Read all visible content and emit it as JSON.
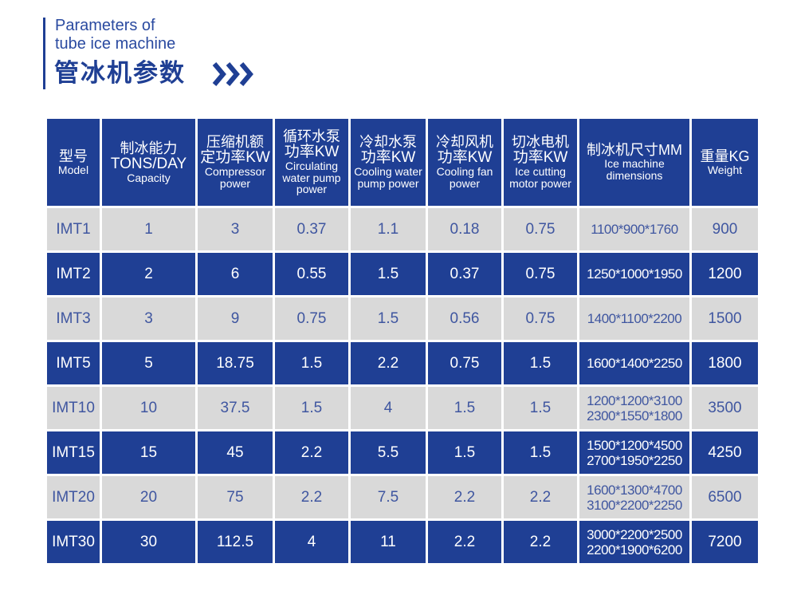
{
  "title": {
    "en_line1": "Parameters of",
    "en_line2": "tube ice machine",
    "zh": "管冰机参数",
    "accent_color": "#1f3f94",
    "icon": "triple-chevron-right-icon"
  },
  "table": {
    "headers": [
      {
        "zh": "型号",
        "en": "Model"
      },
      {
        "zh": "制冰能力",
        "zh2": "TONS/DAY",
        "en": "Capacity"
      },
      {
        "zh": "压缩机额",
        "zh2": "定功率KW",
        "en": "Compressor power"
      },
      {
        "zh": "循环水泵",
        "zh2": "功率KW",
        "en": "Circulating water pump power"
      },
      {
        "zh": "冷却水泵",
        "zh2": "功率KW",
        "en": "Cooling water pump power"
      },
      {
        "zh": "冷却风机",
        "zh2": "功率KW",
        "en": "Cooling fan power"
      },
      {
        "zh": "切冰电机",
        "zh2": "功率KW",
        "en": "Ice cutting motor power"
      },
      {
        "zh": "制冰机尺寸MM",
        "en": "Ice machine dimensions"
      },
      {
        "zh": "重量KG",
        "en": "Weight"
      }
    ],
    "rows": [
      [
        "IMT1",
        "1",
        "3",
        "0.37",
        "1.1",
        "0.18",
        "0.75",
        [
          "1100*900*1760"
        ],
        "900"
      ],
      [
        "IMT2",
        "2",
        "6",
        "0.55",
        "1.5",
        "0.37",
        "0.75",
        [
          "1250*1000*1950"
        ],
        "1200"
      ],
      [
        "IMT3",
        "3",
        "9",
        "0.75",
        "1.5",
        "0.56",
        "0.75",
        [
          "1400*1100*2200"
        ],
        "1500"
      ],
      [
        "IMT5",
        "5",
        "18.75",
        "1.5",
        "2.2",
        "0.75",
        "1.5",
        [
          "1600*1400*2250"
        ],
        "1800"
      ],
      [
        "IMT10",
        "10",
        "37.5",
        "1.5",
        "4",
        "1.5",
        "1.5",
        [
          "1200*1200*3100",
          "2300*1550*1800"
        ],
        "3500"
      ],
      [
        "IMT15",
        "15",
        "45",
        "2.2",
        "5.5",
        "1.5",
        "1.5",
        [
          "1500*1200*4500",
          "2700*1950*2250"
        ],
        "4250"
      ],
      [
        "IMT20",
        "20",
        "75",
        "2.2",
        "7.5",
        "2.2",
        "2.2",
        [
          "1600*1300*4700",
          "3100*2200*2250"
        ],
        "6500"
      ],
      [
        "IMT30",
        "30",
        "112.5",
        "4",
        "11",
        "2.2",
        "2.2",
        [
          "3000*2200*2500",
          "2200*1900*6200"
        ],
        "7200"
      ]
    ],
    "colors": {
      "header": "#1f3f94",
      "gray_row": "#d9d9d9",
      "gray_text": "#3f56a0"
    }
  }
}
